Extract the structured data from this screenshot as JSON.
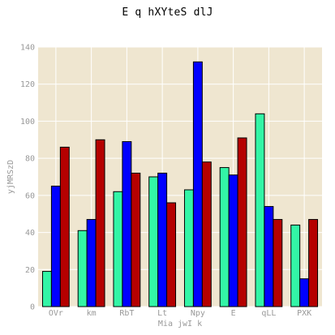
{
  "chart_data": {
    "type": "bar",
    "title": "E q hXYteS dlJ",
    "xlabel": "Mia jwI k",
    "ylabel": "yjMRSzD",
    "categories": [
      "OVr",
      "km",
      "RbT",
      "Lt",
      "Npy",
      "E",
      "qLL",
      "PXK"
    ],
    "series": [
      {
        "color": "#33f5a6",
        "values": [
          19,
          41,
          62,
          70,
          63,
          75,
          104,
          44
        ]
      },
      {
        "color": "#0000ff",
        "values": [
          65,
          47,
          89,
          72,
          132,
          71,
          54,
          15
        ]
      },
      {
        "color": "#b50000",
        "values": [
          86,
          90,
          72,
          56,
          78,
          91,
          47,
          47
        ]
      }
    ],
    "ylim": [
      0,
      140
    ],
    "yticks": [
      0,
      20,
      40,
      60,
      80,
      100,
      120,
      140
    ],
    "grid": true,
    "legend": "none",
    "colors": {
      "plot_background": "#efe6d0",
      "grid": "#ffffff",
      "tick_text": "#999999"
    }
  }
}
